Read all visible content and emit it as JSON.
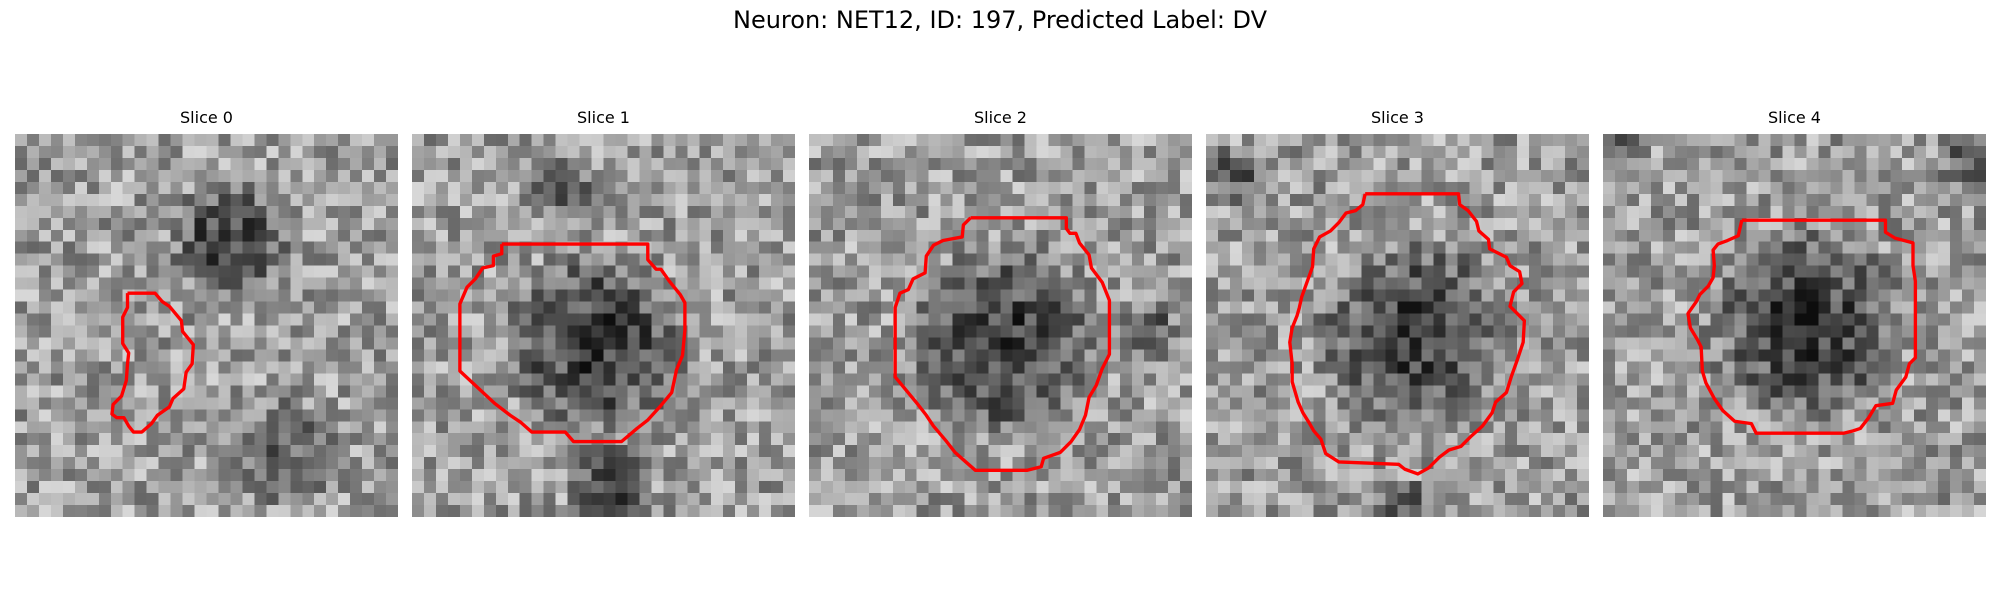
{
  "figure": {
    "title": "Neuron: NET12, ID: 197, Predicted Label: DV"
  },
  "panels": [
    {
      "title": "Slice 0"
    },
    {
      "title": "Slice 1"
    },
    {
      "title": "Slice 2"
    },
    {
      "title": "Slice 3"
    },
    {
      "title": "Slice 4"
    }
  ],
  "contour_color": "#ff0000",
  "colormap": "gray"
}
